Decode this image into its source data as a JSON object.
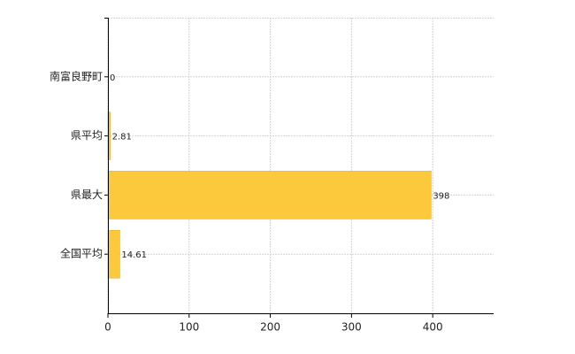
{
  "chart_data": {
    "type": "hbar",
    "categories": [
      "南富良野町",
      "県平均",
      "県最大",
      "全国平均"
    ],
    "values": [
      0,
      2.81,
      398,
      14.61
    ],
    "color": "#fbc93b",
    "xlim": [
      0,
      475
    ],
    "xticks": [
      0,
      100,
      200,
      300,
      400
    ],
    "grid": true
  }
}
